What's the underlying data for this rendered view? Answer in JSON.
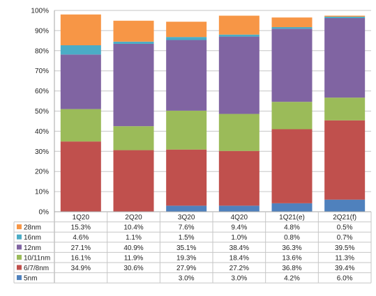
{
  "chart_data": {
    "type": "bar",
    "stacked": true,
    "categories": [
      "1Q20",
      "2Q20",
      "3Q20",
      "4Q20",
      "1Q21(e)",
      "2Q21(f)"
    ],
    "ylim": [
      0,
      100
    ],
    "y_ticks": [
      "0%",
      "10%",
      "20%",
      "30%",
      "40%",
      "50%",
      "60%",
      "70%",
      "80%",
      "90%",
      "100%"
    ],
    "grid": true,
    "legend": "data-table-below",
    "series": [
      {
        "name": "5nm",
        "color": "#4f81bd",
        "values": [
          0,
          0,
          3.0,
          3.0,
          4.2,
          6.0
        ],
        "labels": [
          "",
          "",
          "3.0%",
          "3.0%",
          "4.2%",
          "6.0%"
        ]
      },
      {
        "name": "6/7/8nm",
        "color": "#c0504d",
        "values": [
          34.9,
          30.6,
          27.9,
          27.2,
          36.8,
          39.4
        ],
        "labels": [
          "34.9%",
          "30.6%",
          "27.9%",
          "27.2%",
          "36.8%",
          "39.4%"
        ]
      },
      {
        "name": "10/11nm",
        "color": "#9bbb59",
        "values": [
          16.1,
          11.9,
          19.3,
          18.4,
          13.6,
          11.3
        ],
        "labels": [
          "16.1%",
          "11.9%",
          "19.3%",
          "18.4%",
          "13.6%",
          "11.3%"
        ]
      },
      {
        "name": "12nm",
        "color": "#8064a2",
        "values": [
          27.1,
          40.9,
          35.1,
          38.4,
          36.3,
          39.5
        ],
        "labels": [
          "27.1%",
          "40.9%",
          "35.1%",
          "38.4%",
          "36.3%",
          "39.5%"
        ]
      },
      {
        "name": "16nm",
        "color": "#4bacc6",
        "values": [
          4.6,
          1.1,
          1.5,
          1.0,
          0.8,
          0.7
        ],
        "labels": [
          "4.6%",
          "1.1%",
          "1.5%",
          "1.0%",
          "0.8%",
          "0.7%"
        ]
      },
      {
        "name": "28nm",
        "color": "#f79646",
        "values": [
          15.3,
          10.4,
          7.6,
          9.4,
          4.8,
          0.5
        ],
        "labels": [
          "15.3%",
          "10.4%",
          "7.6%",
          "9.4%",
          "4.8%",
          "0.5%"
        ]
      }
    ]
  }
}
